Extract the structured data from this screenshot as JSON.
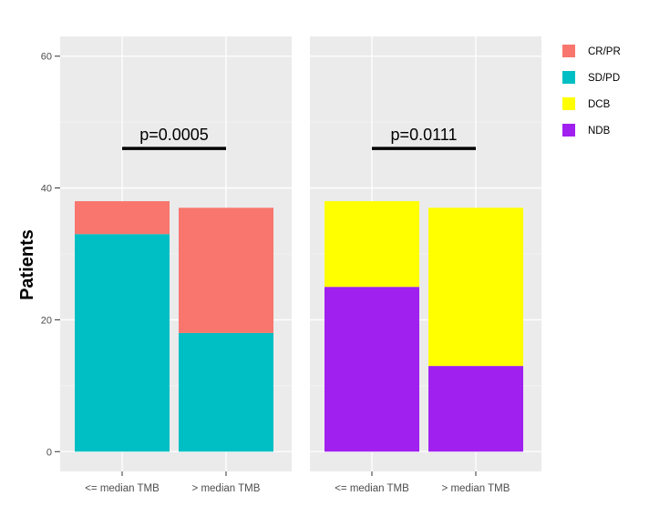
{
  "chart_data": {
    "type": "bar",
    "stacked": true,
    "ylabel": "Patients",
    "ylim": [
      -3,
      63
    ],
    "yticks": [
      0,
      20,
      40,
      60
    ],
    "grid": true,
    "legend_position": "right",
    "legend": [
      {
        "label": "CR/PR",
        "color": "#F8766D"
      },
      {
        "label": "SD/PD",
        "color": "#00BFC4"
      },
      {
        "label": "DCB",
        "color": "#FFFF00"
      },
      {
        "label": "NDB",
        "color": "#A020F0"
      }
    ],
    "panels": [
      {
        "categories": [
          "<= median TMB",
          "> median TMB"
        ],
        "annotation": "p=0.0005",
        "annotation_y": 46,
        "series": [
          {
            "name": "SD/PD",
            "color": "#00BFC4",
            "values": [
              33,
              18
            ]
          },
          {
            "name": "CR/PR",
            "color": "#F8766D",
            "values": [
              5,
              19
            ]
          }
        ]
      },
      {
        "categories": [
          "<= median TMB",
          "> median TMB"
        ],
        "annotation": "p=0.0111",
        "annotation_y": 46,
        "series": [
          {
            "name": "NDB",
            "color": "#A020F0",
            "values": [
              25,
              13
            ]
          },
          {
            "name": "DCB",
            "color": "#FFFF00",
            "values": [
              13,
              24
            ]
          }
        ]
      }
    ]
  }
}
